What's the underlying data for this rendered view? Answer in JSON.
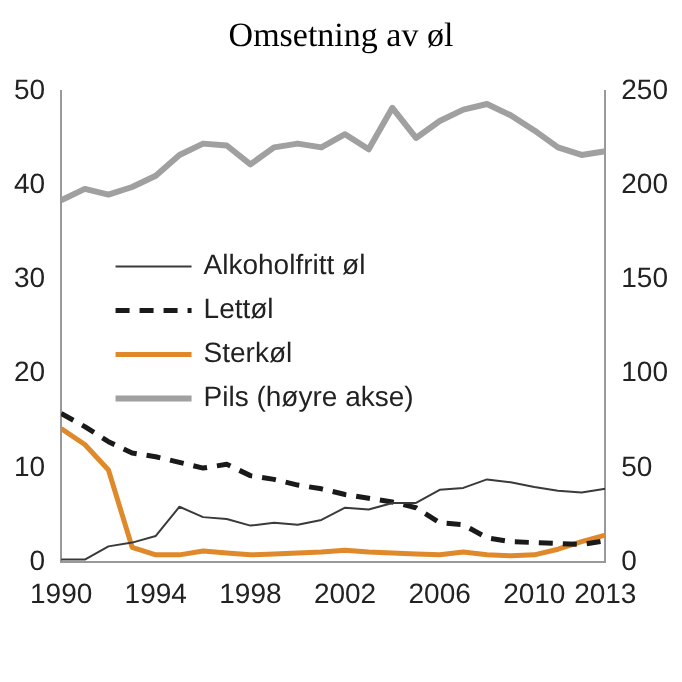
{
  "chart_data": {
    "type": "line",
    "title": "Omsetning av øl",
    "x": [
      1990,
      1991,
      1992,
      1993,
      1994,
      1995,
      1996,
      1997,
      1998,
      1999,
      2000,
      2001,
      2002,
      2003,
      2004,
      2005,
      2006,
      2007,
      2008,
      2009,
      2010,
      2011,
      2012,
      2013
    ],
    "xlim": [
      1990,
      2013
    ],
    "xticks": [
      1990,
      1994,
      1998,
      2002,
      2006,
      2010,
      2013
    ],
    "ylim": [
      0,
      50
    ],
    "yticks": [
      0,
      10,
      20,
      30,
      40,
      50
    ],
    "y2lim": [
      0,
      250
    ],
    "y2ticks": [
      0,
      50,
      100,
      150,
      200,
      250
    ],
    "grid": false,
    "legend": "center",
    "marker": "none",
    "series": [
      {
        "name": "Alkoholfritt øl",
        "color": "#3a3a3a",
        "line_style": "solid",
        "values": [
          0.3,
          0.3,
          1.7,
          2.1,
          2.8,
          5.9,
          4.8,
          4.6,
          3.9,
          4.2,
          4.0,
          4.5,
          5.8,
          5.6,
          6.3,
          6.3,
          7.7,
          7.9,
          8.8,
          8.5,
          8.0,
          7.6,
          7.4,
          7.8
        ]
      },
      {
        "name": "Lettøl",
        "color": "#1a1a1a",
        "line_style": "dashed",
        "values": [
          15.8,
          14.4,
          12.8,
          11.6,
          11.2,
          10.6,
          10.0,
          10.4,
          9.2,
          8.8,
          8.2,
          7.8,
          7.2,
          6.8,
          6.4,
          5.8,
          4.2,
          4.0,
          2.6,
          2.2,
          2.1,
          2.0,
          1.9,
          2.3
        ]
      },
      {
        "name": "Sterkøl",
        "color": "#e0892a",
        "line_style": "solid",
        "values": [
          14.2,
          12.5,
          9.8,
          1.6,
          0.8,
          0.8,
          1.2,
          1.0,
          0.8,
          0.9,
          1.0,
          1.1,
          1.3,
          1.1,
          1.0,
          0.9,
          0.8,
          1.1,
          0.8,
          0.7,
          0.8,
          1.4,
          2.2,
          2.9
        ]
      },
      {
        "name": "Pils (høyre akse)",
        "color": "#a0a0a0",
        "line_style": "solid",
        "axis": "y2",
        "values": [
          192,
          198,
          195,
          199,
          205,
          216,
          222,
          221,
          211,
          220,
          222,
          220,
          227,
          219,
          241,
          225,
          234,
          240,
          243,
          237,
          229,
          220,
          216,
          218
        ]
      }
    ]
  }
}
